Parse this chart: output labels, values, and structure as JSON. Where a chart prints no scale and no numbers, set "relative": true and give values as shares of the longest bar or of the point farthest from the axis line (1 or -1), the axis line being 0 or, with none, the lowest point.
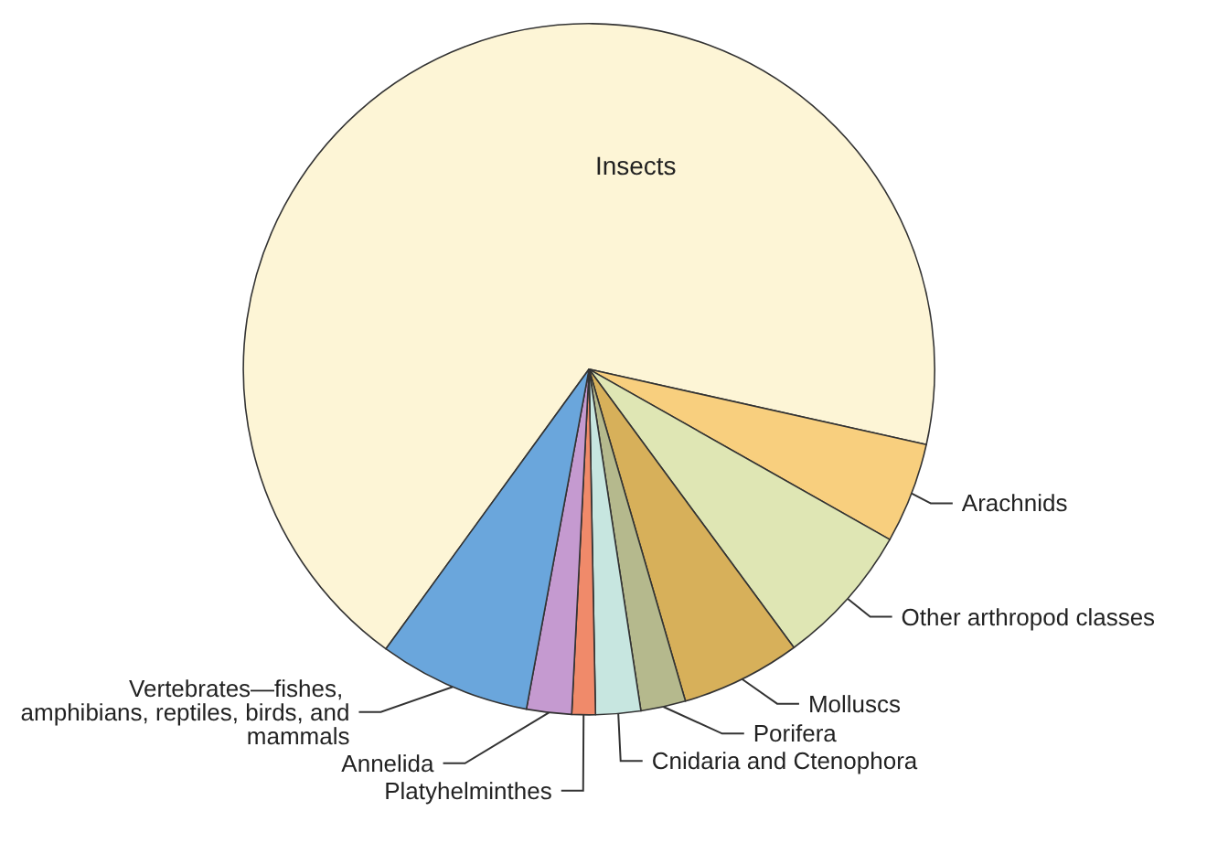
{
  "chart_data": {
    "type": "pie",
    "relative": true,
    "categories": [
      "Insects",
      "Arachnids",
      "Other arthropod classes",
      "Molluscs",
      "Porifera",
      "Cnidaria and Ctenophora",
      "Platyhelminthes",
      "Annelida",
      "Vertebrates—fishes, amphibians, reptiles, birds, and mammals"
    ],
    "values": [
      68.5,
      4.7,
      6.7,
      5.6,
      2.1,
      2.1,
      1.1,
      2.1,
      7.1
    ],
    "colors": [
      "#fdf5d6",
      "#f8cf7e",
      "#dfe6b4",
      "#d7b05a",
      "#b5b98d",
      "#c7e6e0",
      "#f08a6a",
      "#c59ad0",
      "#6aa6dc"
    ],
    "legend": false
  }
}
